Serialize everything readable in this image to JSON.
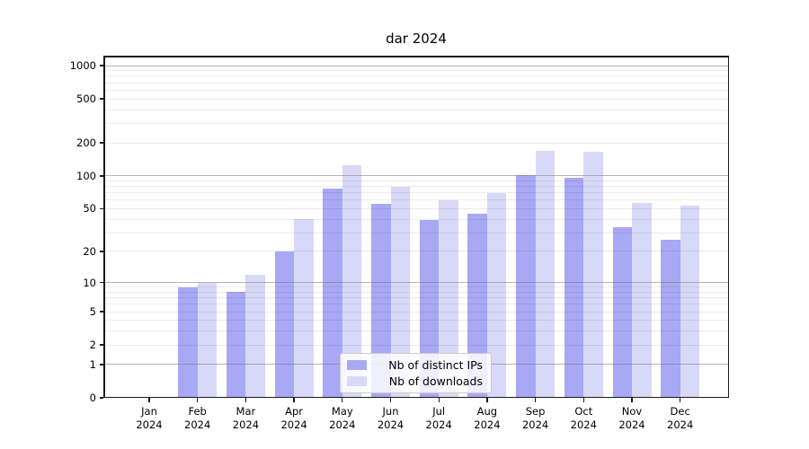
{
  "title": "dar 2024",
  "chart_data": {
    "type": "bar",
    "title": "dar 2024",
    "categories": [
      "Jan 2024",
      "Feb 2024",
      "Mar 2024",
      "Apr 2024",
      "May 2024",
      "Jun 2024",
      "Jul 2024",
      "Aug 2024",
      "Sep 2024",
      "Oct 2024",
      "Nov 2024",
      "Dec 2024"
    ],
    "series": [
      {
        "name": "Nb of distinct IPs",
        "color": "#a8a8f4",
        "values": [
          0,
          9,
          8,
          20,
          76,
          55,
          39,
          45,
          101,
          96,
          34,
          26
        ]
      },
      {
        "name": "Nb of downloads",
        "color": "#d8d8f8",
        "values": [
          0,
          10,
          12,
          40,
          125,
          80,
          60,
          70,
          170,
          167,
          57,
          53
        ]
      }
    ],
    "xlabel": "",
    "ylabel": "",
    "y_scale": "log1p",
    "y_ticks": [
      0,
      1,
      2,
      5,
      10,
      20,
      50,
      100,
      200,
      500,
      1000
    ],
    "y_major_gridlines": [
      1,
      10,
      100,
      1000
    ],
    "ylim": [
      0,
      1200
    ],
    "grid": "major+minor horizontal",
    "legend_position": "inside-bottom-center"
  },
  "colors": {
    "distinct_ips_bar": "#a8a8f4",
    "downloads_bar": "#d8d8f8",
    "major_grid": "#b0b0b0",
    "minor_grid": "#ececec",
    "spine": "#1a1a1a",
    "background": "#ffffff",
    "legend_border": "#cccccc"
  }
}
